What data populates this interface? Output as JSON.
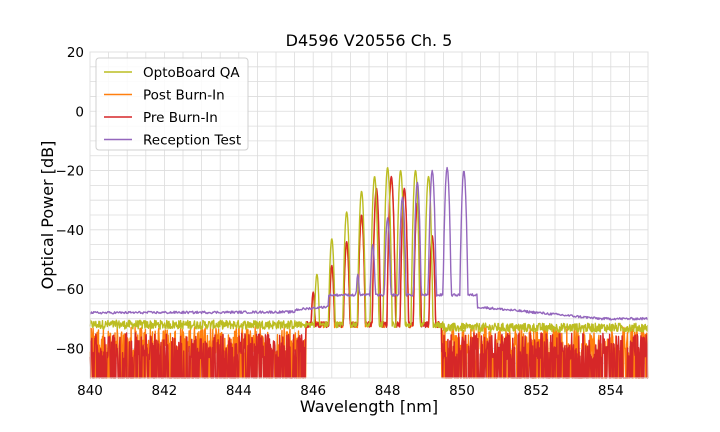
{
  "chart_data": {
    "type": "line",
    "title": "D4596 V20556 Ch. 5",
    "xlabel": "Wavelength [nm]",
    "ylabel": "Optical Power [dB]",
    "xlim": [
      840,
      855
    ],
    "ylim": [
      -90,
      20
    ],
    "xticks": [
      "840",
      "842",
      "844",
      "846",
      "848",
      "850",
      "852",
      "854"
    ],
    "yticks": [
      "20",
      "0",
      "−20",
      "−40",
      "−60",
      "−80"
    ],
    "grid": true,
    "legend_position": "top-left",
    "noise_floor_db": -90,
    "series": [
      {
        "name": "OptoBoard QA",
        "color": "#bcbd22",
        "noise_range_nm": [
          840,
          845.5
        ],
        "noise_level_db": -72,
        "noise_range2_nm": [
          849.6,
          855
        ],
        "noise_level2_db": -73,
        "peaks": [
          {
            "x": 846.1,
            "y": -55
          },
          {
            "x": 846.5,
            "y": -43
          },
          {
            "x": 846.9,
            "y": -34
          },
          {
            "x": 847.3,
            "y": -27
          },
          {
            "x": 847.65,
            "y": -22
          },
          {
            "x": 848.0,
            "y": -19
          },
          {
            "x": 848.35,
            "y": -20
          },
          {
            "x": 848.75,
            "y": -20
          },
          {
            "x": 849.1,
            "y": -22
          }
        ],
        "edge_left_nm": 845.6,
        "edge_right_nm": 849.5
      },
      {
        "name": "Post Burn-In",
        "color": "#ff7f0e",
        "noise_range_nm": [
          840,
          845.8
        ],
        "noise_level_db": -80,
        "noise_range2_nm": [
          849.5,
          855
        ],
        "noise_level2_db": -80,
        "peaks": [
          {
            "x": 846.0,
            "y": -62
          },
          {
            "x": 846.5,
            "y": -53
          },
          {
            "x": 846.9,
            "y": -45
          },
          {
            "x": 847.3,
            "y": -36
          },
          {
            "x": 847.7,
            "y": -28
          },
          {
            "x": 848.1,
            "y": -23
          },
          {
            "x": 848.45,
            "y": -27
          },
          {
            "x": 848.8,
            "y": -32
          },
          {
            "x": 849.2,
            "y": -43
          }
        ],
        "edge_left_nm": 845.8,
        "edge_right_nm": 849.45
      },
      {
        "name": "Pre Burn-In",
        "color": "#d62728",
        "noise_range_nm": [
          840,
          845.8
        ],
        "noise_level_db": -82,
        "noise_range2_nm": [
          849.5,
          855
        ],
        "noise_level2_db": -82,
        "peaks": [
          {
            "x": 846.0,
            "y": -61
          },
          {
            "x": 846.5,
            "y": -52
          },
          {
            "x": 846.9,
            "y": -44
          },
          {
            "x": 847.3,
            "y": -35
          },
          {
            "x": 847.7,
            "y": -26
          },
          {
            "x": 848.1,
            "y": -22
          },
          {
            "x": 848.45,
            "y": -26
          },
          {
            "x": 848.8,
            "y": -31
          },
          {
            "x": 849.2,
            "y": -42
          }
        ],
        "edge_left_nm": 845.8,
        "edge_right_nm": 849.45
      },
      {
        "name": "Reception Test",
        "color": "#9467bd",
        "baseline_left_db": -68,
        "baseline_right_db": -70,
        "peaks": [
          {
            "x": 846.8,
            "y": -62
          },
          {
            "x": 847.2,
            "y": -55
          },
          {
            "x": 847.6,
            "y": -45
          },
          {
            "x": 848.0,
            "y": -36
          },
          {
            "x": 848.4,
            "y": -29
          },
          {
            "x": 848.8,
            "y": -24
          },
          {
            "x": 849.2,
            "y": -20
          },
          {
            "x": 849.6,
            "y": -19
          },
          {
            "x": 850.05,
            "y": -20
          }
        ],
        "edge_left_nm": 846.4,
        "edge_right_nm": 850.4
      }
    ]
  }
}
